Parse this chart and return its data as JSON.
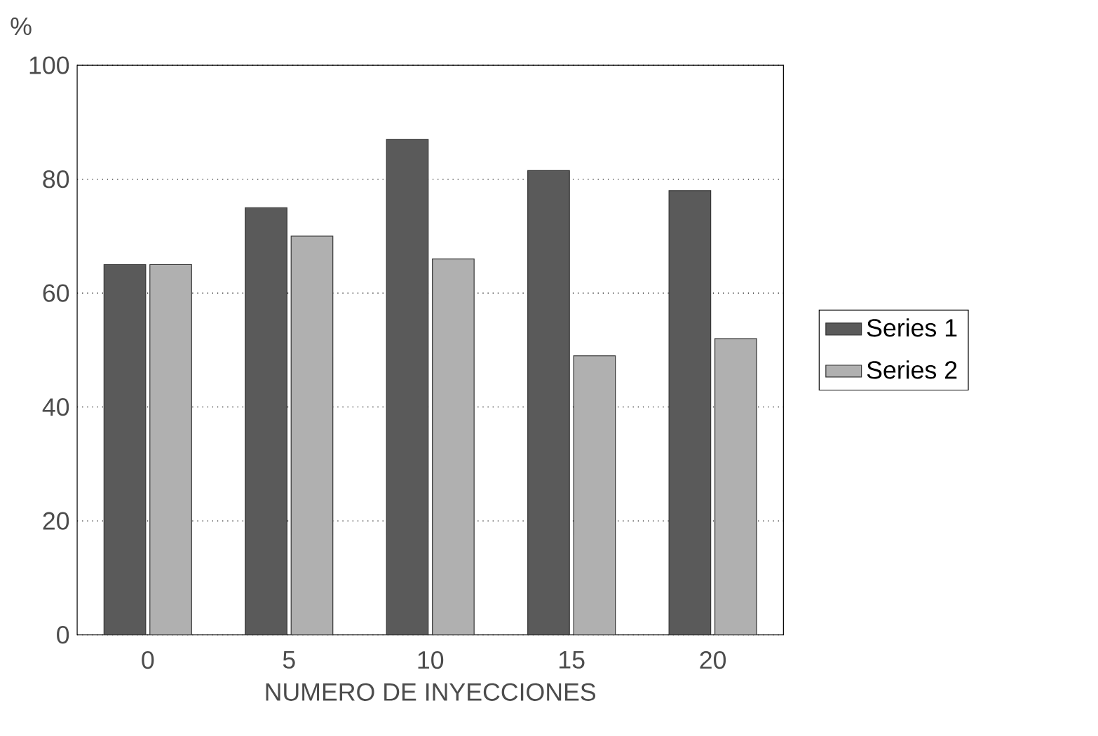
{
  "chart_data": {
    "type": "bar",
    "ylabel": "%",
    "xlabel": "NUMERO DE INYECCIONES",
    "categories": [
      "0",
      "5",
      "10",
      "15",
      "20"
    ],
    "series": [
      {
        "name": "Series 1",
        "color": "#5a5a5a",
        "values": [
          65,
          75,
          87,
          81.5,
          78
        ]
      },
      {
        "name": "Series 2",
        "color": "#b0b0b0",
        "values": [
          65,
          70,
          66,
          49,
          52
        ]
      }
    ],
    "ylim": [
      0,
      100
    ],
    "yticks": [
      0,
      20,
      40,
      60,
      80,
      100
    ],
    "grid": "y",
    "legend": "right"
  }
}
